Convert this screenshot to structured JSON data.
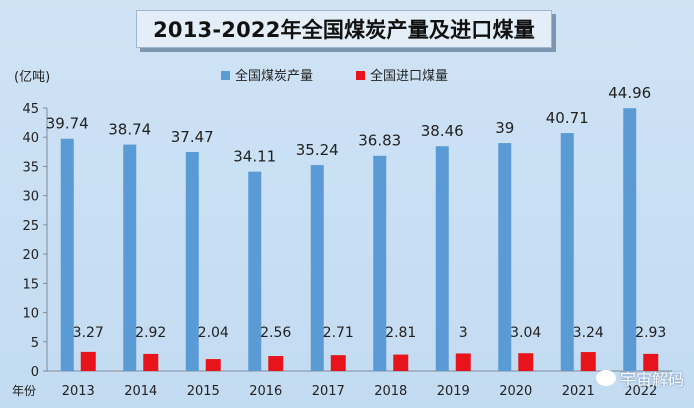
{
  "chart_data": {
    "type": "bar",
    "title": "2013-2022年全国煤炭产量及进口煤量",
    "ylabel": "(亿吨)",
    "xlabel": "年份",
    "ylim": [
      0,
      45
    ],
    "yticks": [
      0,
      5,
      10,
      15,
      20,
      25,
      30,
      35,
      40,
      45
    ],
    "categories": [
      "2013",
      "2014",
      "2015",
      "2016",
      "2017",
      "2018",
      "2019",
      "2020",
      "2021",
      "2022"
    ],
    "series": [
      {
        "name": "全国煤炭产量",
        "color": "#5b9bd5",
        "values": [
          39.74,
          38.74,
          37.47,
          34.11,
          35.24,
          36.83,
          38.46,
          39,
          40.71,
          44.96
        ],
        "labels": [
          "39.74",
          "38.74",
          "37.47",
          "34.11",
          "35.24",
          "36.83",
          "38.46",
          "39",
          "40.71",
          "44.96"
        ]
      },
      {
        "name": "全国进口煤量",
        "color": "#e8141b",
        "values": [
          3.27,
          2.92,
          2.04,
          2.56,
          2.71,
          2.81,
          3,
          3.04,
          3.24,
          2.93
        ],
        "labels": [
          "3.27",
          "2.92",
          "2.04",
          "2.56",
          "2.71",
          "2.81",
          "3",
          "3.04",
          "3.24",
          "2.93"
        ]
      }
    ],
    "legend": "top-center",
    "grid": false
  },
  "watermark": {
    "text": "宇宙解码",
    "icon": "wechat-icon"
  }
}
